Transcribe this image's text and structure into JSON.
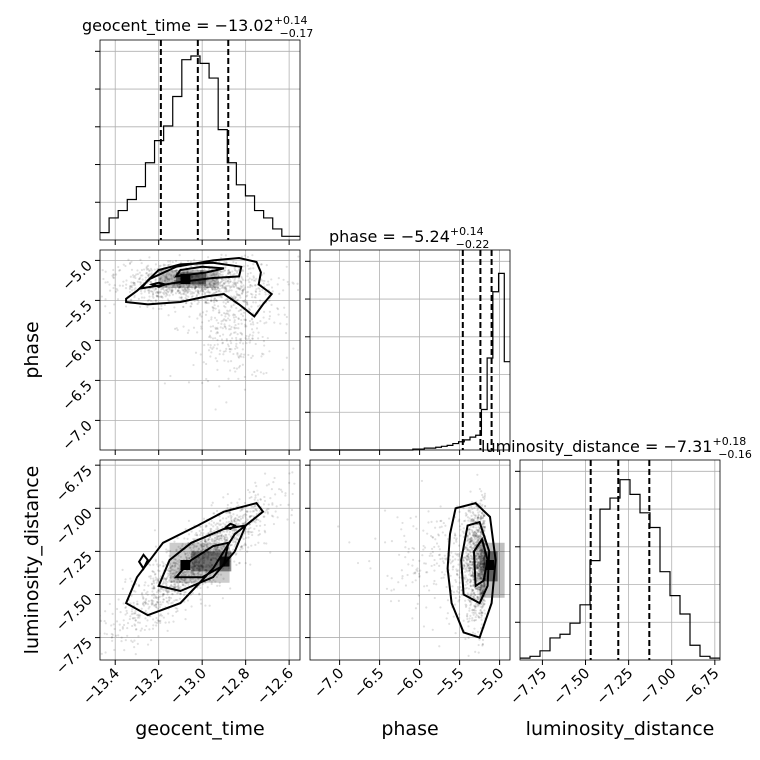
{
  "chart_data": {
    "type": "corner",
    "parameters": [
      "geocent_time",
      "phase",
      "luminosity_distance"
    ],
    "titles": [
      {
        "name": "geocent_time",
        "median": "−13.02",
        "plus": "+0.14",
        "minus": "−0.17"
      },
      {
        "name": "phase",
        "median": "−5.24",
        "plus": "+0.14",
        "minus": "−0.22"
      },
      {
        "name": "luminosity_distance",
        "median": "−7.31",
        "plus": "+0.18",
        "minus": "−0.16"
      }
    ],
    "ranges": {
      "geocent_time": [
        -13.47,
        -12.55
      ],
      "phase": [
        -7.37,
        -4.87
      ],
      "luminosity_distance": [
        -7.88,
        -6.72
      ]
    },
    "ticks": {
      "geocent_time": [
        -13.4,
        -13.2,
        -13.0,
        -12.8,
        -12.6
      ],
      "phase": [
        -7.0,
        -6.5,
        -6.0,
        -5.5,
        -5.0
      ],
      "luminosity_distance": [
        -7.75,
        -7.5,
        -7.25,
        -7.0,
        -6.75
      ]
    },
    "tick_labels": {
      "geocent_time": [
        "−13.4",
        "−13.2",
        "−13.0",
        "−12.8",
        "−12.6"
      ],
      "phase": [
        "−7.0",
        "−6.5",
        "−6.0",
        "−5.5",
        "−5.0"
      ],
      "luminosity_distance": [
        "−7.75",
        "−7.50",
        "−7.25",
        "−7.00",
        "−6.75"
      ]
    },
    "quantiles": {
      "geocent_time": [
        -13.19,
        -13.02,
        -12.88
      ],
      "phase": [
        -5.46,
        -5.24,
        -5.1
      ],
      "luminosity_distance": [
        -7.47,
        -7.31,
        -7.13
      ]
    },
    "histograms": {
      "geocent_time": [
        0.04,
        0.12,
        0.16,
        0.22,
        0.29,
        0.42,
        0.54,
        0.62,
        0.78,
        0.98,
        1.0,
        0.96,
        0.88,
        0.6,
        0.42,
        0.3,
        0.24,
        0.16,
        0.12,
        0.06,
        0.02,
        0.02
      ],
      "phase": [
        0.0,
        0.0,
        0.0,
        0.0,
        0.0,
        0.0,
        0.0,
        0.0,
        0.0,
        0.0,
        0.0,
        0.0,
        0.0,
        0.0,
        0.0,
        0.0,
        0.0,
        0.0,
        0.005,
        0.005,
        0.01,
        0.01,
        0.015,
        0.02,
        0.025,
        0.035,
        0.045,
        0.055,
        0.07,
        0.08,
        0.22,
        0.5,
        0.86,
        0.96,
        0.48
      ],
      "luminosity_distance": [
        0.01,
        0.02,
        0.05,
        0.12,
        0.14,
        0.2,
        0.3,
        0.54,
        0.82,
        0.88,
        0.98,
        0.9,
        0.8,
        0.72,
        0.48,
        0.35,
        0.25,
        0.08,
        0.02,
        0.01
      ]
    },
    "grid": true,
    "contours": "1σ/2σ/3σ credible-region contours over 2D histograms with scatter points"
  }
}
